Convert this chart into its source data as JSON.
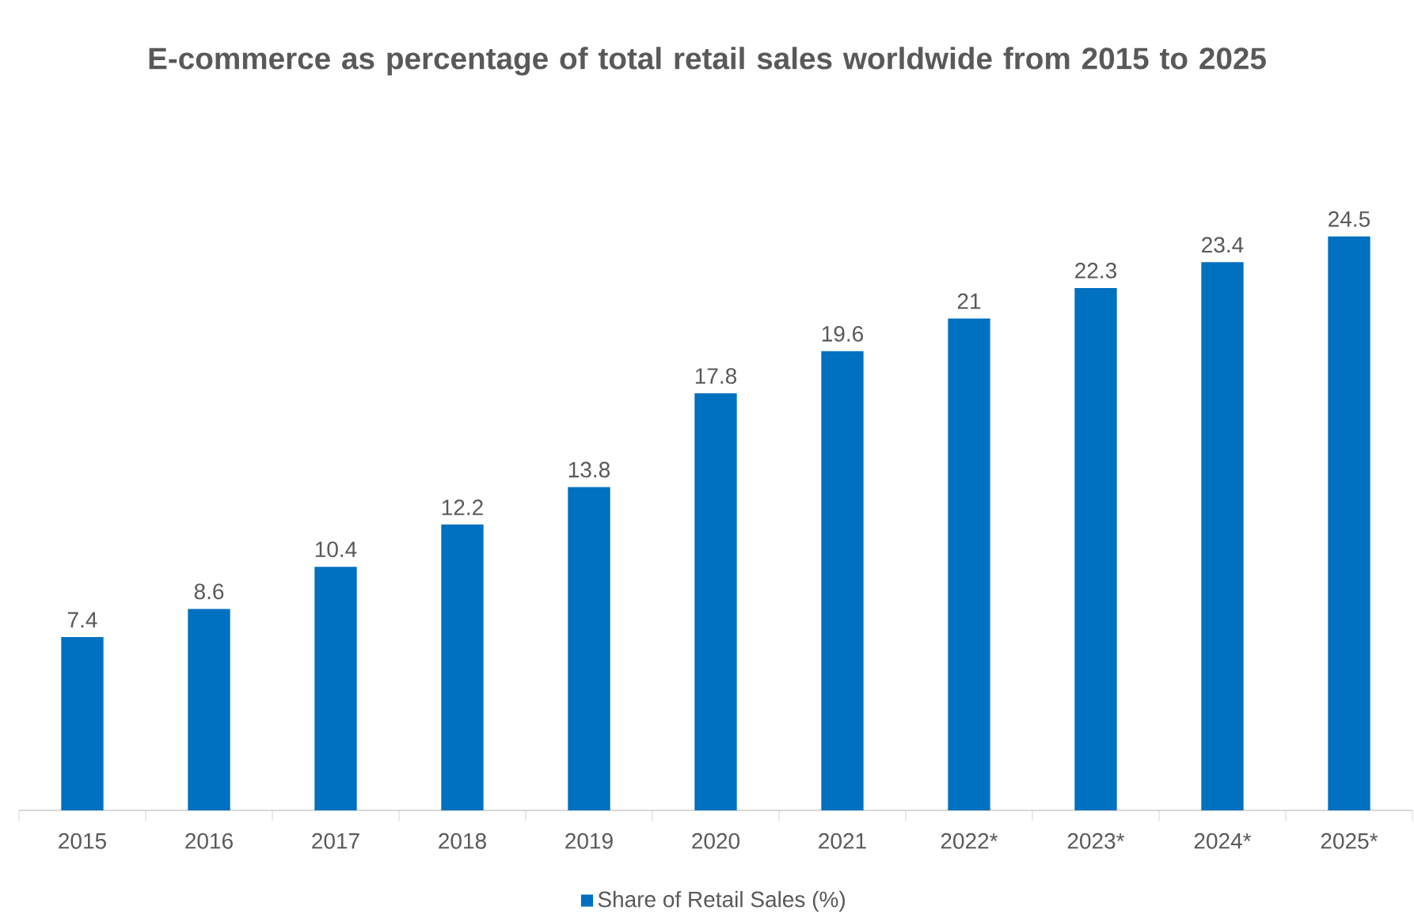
{
  "chart_data": {
    "type": "bar",
    "title": "E-commerce as percentage of total retail sales worldwide from 2015 to 2025",
    "categories": [
      "2015",
      "2016",
      "2017",
      "2018",
      "2019",
      "2020",
      "2021",
      "2022*",
      "2023*",
      "2024*",
      "2025*"
    ],
    "series": [
      {
        "name": "Share of Retail Sales (%)",
        "color": "#0070c0",
        "values": [
          7.4,
          8.6,
          10.4,
          12.2,
          13.8,
          17.8,
          19.6,
          21,
          22.3,
          23.4,
          24.5
        ]
      }
    ],
    "data_labels": true,
    "legend": "bottom",
    "grid": false
  }
}
